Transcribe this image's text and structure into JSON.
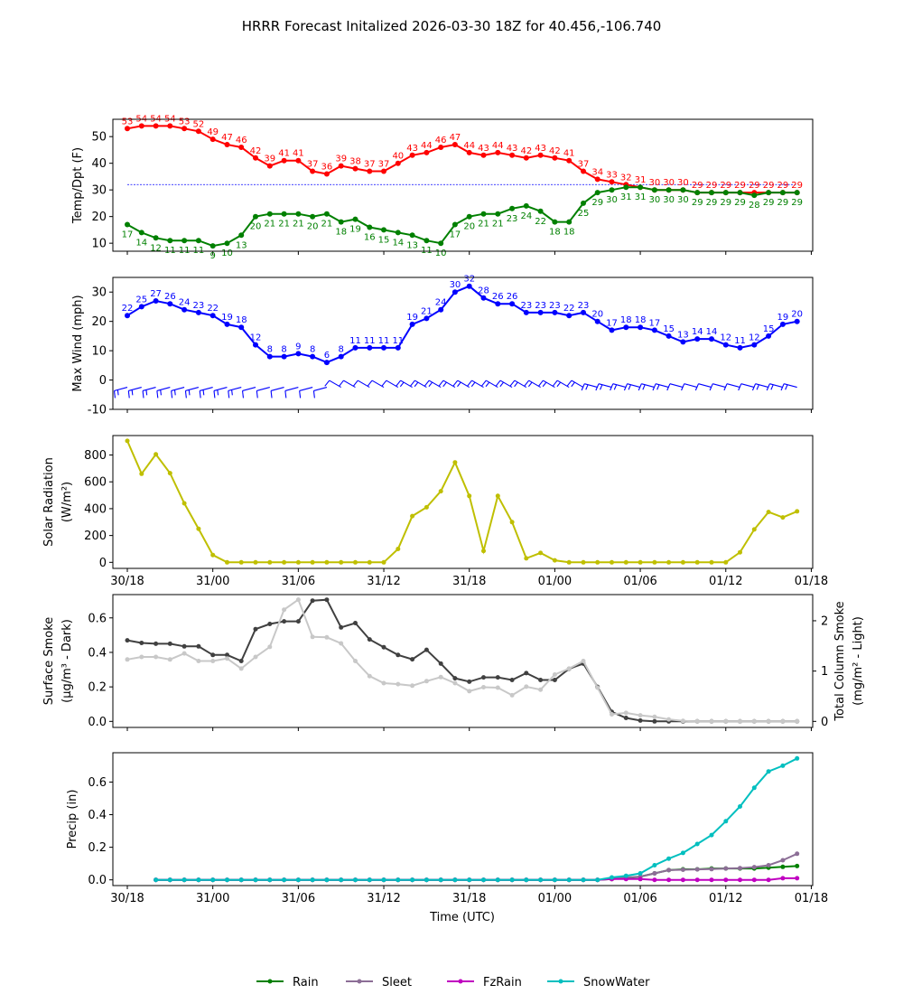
{
  "figure_title": "HRRR Forecast Initalized 2026-03-30 18Z for 40.456,-106.740",
  "chart_data": [
    {
      "type": "line",
      "name": "temp-dewpoint",
      "ylabel": "Temp/Dpt (F)",
      "ylim": [
        7,
        56.5
      ],
      "yticks": [
        10,
        20,
        30,
        40,
        50
      ],
      "freezing_line": 32,
      "series": [
        {
          "name": "Temperature",
          "color": "#ff0000",
          "values": [
            53,
            54,
            54,
            54,
            53,
            52,
            49,
            47,
            46,
            42,
            39,
            41,
            41,
            37,
            36,
            39,
            38,
            37,
            37,
            40,
            43,
            44,
            46,
            47,
            44,
            43,
            44,
            43,
            42,
            43,
            42,
            41,
            37,
            34,
            33,
            32,
            31,
            30,
            30,
            30,
            29,
            29,
            29,
            29,
            29,
            29,
            29,
            29
          ]
        },
        {
          "name": "Dewpoint",
          "color": "#008000",
          "values": [
            17,
            14,
            12,
            11,
            11,
            11,
            9,
            10,
            13,
            20,
            21,
            21,
            21,
            20,
            21,
            18,
            19,
            16,
            15,
            14,
            13,
            11,
            10,
            17,
            20,
            21,
            21,
            23,
            24,
            22,
            18,
            18,
            25,
            29,
            30,
            31,
            31,
            30,
            30,
            30,
            29,
            29,
            29,
            29,
            28,
            29,
            29,
            29
          ]
        }
      ]
    },
    {
      "type": "line",
      "name": "max-wind",
      "ylabel": "Max Wind (mph)",
      "ylim": [
        -10,
        35
      ],
      "yticks": [
        -10,
        0,
        10,
        20,
        30
      ],
      "series": [
        {
          "name": "Max Wind",
          "color": "#0000ff",
          "values": [
            22,
            25,
            27,
            26,
            24,
            23,
            22,
            19,
            18,
            12,
            8,
            8,
            9,
            8,
            6,
            8,
            11,
            11,
            11,
            11,
            19,
            21,
            24,
            30,
            32,
            28,
            26,
            26,
            23,
            23,
            23,
            22,
            23,
            20,
            17,
            18,
            18,
            17,
            15,
            13,
            14,
            14,
            12,
            11,
            12,
            15,
            19,
            20
          ]
        }
      ],
      "wind_barbs_row": 0
    },
    {
      "type": "line",
      "name": "solar-radiation",
      "ylabel": "Solar Radiation",
      "ylabel2": "(W/m²)",
      "ylim": [
        -45,
        945
      ],
      "yticks": [
        0,
        200,
        400,
        600,
        800
      ],
      "series": [
        {
          "name": "Solar Radiation",
          "color": "#bfbf00",
          "values": [
            905,
            660,
            805,
            665,
            440,
            250,
            55,
            0,
            0,
            0,
            0,
            0,
            0,
            0,
            0,
            0,
            0,
            0,
            0,
            100,
            345,
            410,
            530,
            745,
            495,
            85,
            495,
            300,
            30,
            70,
            15,
            0,
            0,
            0,
            0,
            0,
            0,
            0,
            0,
            0,
            0,
            0,
            0,
            75,
            245,
            375,
            335,
            380
          ]
        }
      ]
    },
    {
      "type": "line",
      "name": "smoke",
      "ylabel": "Surface Smoke",
      "ylabel2": "(µg/m³ - Dark)",
      "ylabel_right": "Total Column Smoke",
      "ylabel_right2": "(mg/m² - Light)",
      "ylim": [
        -0.035,
        0.735
      ],
      "yticks": [
        0.0,
        0.2,
        0.4,
        0.6
      ],
      "ylim_right": [
        -0.12,
        2.52
      ],
      "yticks_right": [
        0,
        1,
        2
      ],
      "series": [
        {
          "name": "Surface Smoke",
          "color": "#404040",
          "axis": "left",
          "values": [
            0.47,
            0.455,
            0.45,
            0.45,
            0.435,
            0.435,
            0.385,
            0.385,
            0.35,
            0.535,
            0.565,
            0.58,
            0.58,
            0.7,
            0.705,
            0.545,
            0.57,
            0.475,
            0.43,
            0.385,
            0.36,
            0.415,
            0.335,
            0.25,
            0.23,
            0.255,
            0.255,
            0.24,
            0.28,
            0.24,
            0.24,
            0.305,
            0.335,
            0.2,
            0.055,
            0.02,
            0.005,
            0,
            0,
            0,
            0,
            0,
            0,
            0,
            0,
            0,
            0,
            0
          ]
        },
        {
          "name": "Total Column Smoke",
          "color": "#c8c8c8",
          "axis": "right",
          "values": [
            1.23,
            1.28,
            1.28,
            1.23,
            1.35,
            1.2,
            1.2,
            1.25,
            1.05,
            1.28,
            1.48,
            2.22,
            2.42,
            1.68,
            1.67,
            1.55,
            1.2,
            0.9,
            0.76,
            0.74,
            0.71,
            0.8,
            0.88,
            0.76,
            0.6,
            0.68,
            0.67,
            0.52,
            0.69,
            0.63,
            0.93,
            1.05,
            1.2,
            0.67,
            0.14,
            0.17,
            0.12,
            0.09,
            0.04,
            0.01,
            0,
            0,
            0,
            0,
            0,
            0,
            0,
            0
          ]
        }
      ]
    },
    {
      "type": "line",
      "name": "precip",
      "ylabel": "Precip (in)",
      "ylim": [
        -0.035,
        0.78
      ],
      "yticks": [
        0.0,
        0.2,
        0.4,
        0.6
      ],
      "x_start_index": 2,
      "series": [
        {
          "name": "Rain",
          "color": "#008000",
          "values": [
            0,
            0,
            0,
            0,
            0,
            0,
            0,
            0,
            0,
            0,
            0,
            0,
            0,
            0,
            0,
            0,
            0,
            0,
            0,
            0,
            0,
            0,
            0,
            0,
            0,
            0,
            0,
            0,
            0,
            0,
            0,
            0,
            0.005,
            0.01,
            0.02,
            0.04,
            0.06,
            0.065,
            0.065,
            0.07,
            0.07,
            0.07,
            0.07,
            0.075,
            0.08,
            0.085
          ]
        },
        {
          "name": "Sleet",
          "color": "#8c6e96",
          "values": [
            0,
            0,
            0,
            0,
            0,
            0,
            0,
            0,
            0,
            0,
            0,
            0,
            0,
            0,
            0,
            0,
            0,
            0,
            0,
            0,
            0,
            0,
            0,
            0,
            0,
            0,
            0,
            0,
            0,
            0,
            0,
            0,
            0.01,
            0.015,
            0.02,
            0.04,
            0.06,
            0.062,
            0.064,
            0.066,
            0.07,
            0.072,
            0.078,
            0.09,
            0.12,
            0.16
          ]
        },
        {
          "name": "FzRain",
          "color": "#c000c0",
          "values": [
            0,
            0,
            0,
            0,
            0,
            0,
            0,
            0,
            0,
            0,
            0,
            0,
            0,
            0,
            0,
            0,
            0,
            0,
            0,
            0,
            0,
            0,
            0,
            0,
            0,
            0,
            0,
            0,
            0,
            0,
            0,
            0,
            0.005,
            0.005,
            0.005,
            0,
            0,
            0,
            0,
            0,
            0,
            0,
            0,
            0,
            0.01,
            0.01
          ]
        },
        {
          "name": "SnowWater",
          "color": "#00bfbf",
          "values": [
            0,
            0,
            0,
            0,
            0,
            0,
            0,
            0,
            0,
            0,
            0,
            0,
            0,
            0,
            0,
            0,
            0,
            0,
            0,
            0,
            0,
            0,
            0,
            0,
            0,
            0,
            0,
            0,
            0,
            0,
            0,
            0,
            0.015,
            0.025,
            0.04,
            0.09,
            0.13,
            0.165,
            0.22,
            0.275,
            0.36,
            0.45,
            0.565,
            0.665,
            0.7,
            0.745
          ]
        }
      ]
    }
  ],
  "x_axis": {
    "n_points": 48,
    "tick_labels": [
      "30/18",
      "31/00",
      "31/06",
      "31/12",
      "31/18",
      "01/00",
      "01/06",
      "01/12",
      "01/18"
    ],
    "xlabel": "Time (UTC)"
  },
  "legend": {
    "placement": "bottom-center",
    "items": [
      {
        "label": "Rain",
        "color": "#008000"
      },
      {
        "label": "Sleet",
        "color": "#8c6e96"
      },
      {
        "label": "FzRain",
        "color": "#c000c0"
      },
      {
        "label": "SnowWater",
        "color": "#00bfbf"
      }
    ]
  }
}
